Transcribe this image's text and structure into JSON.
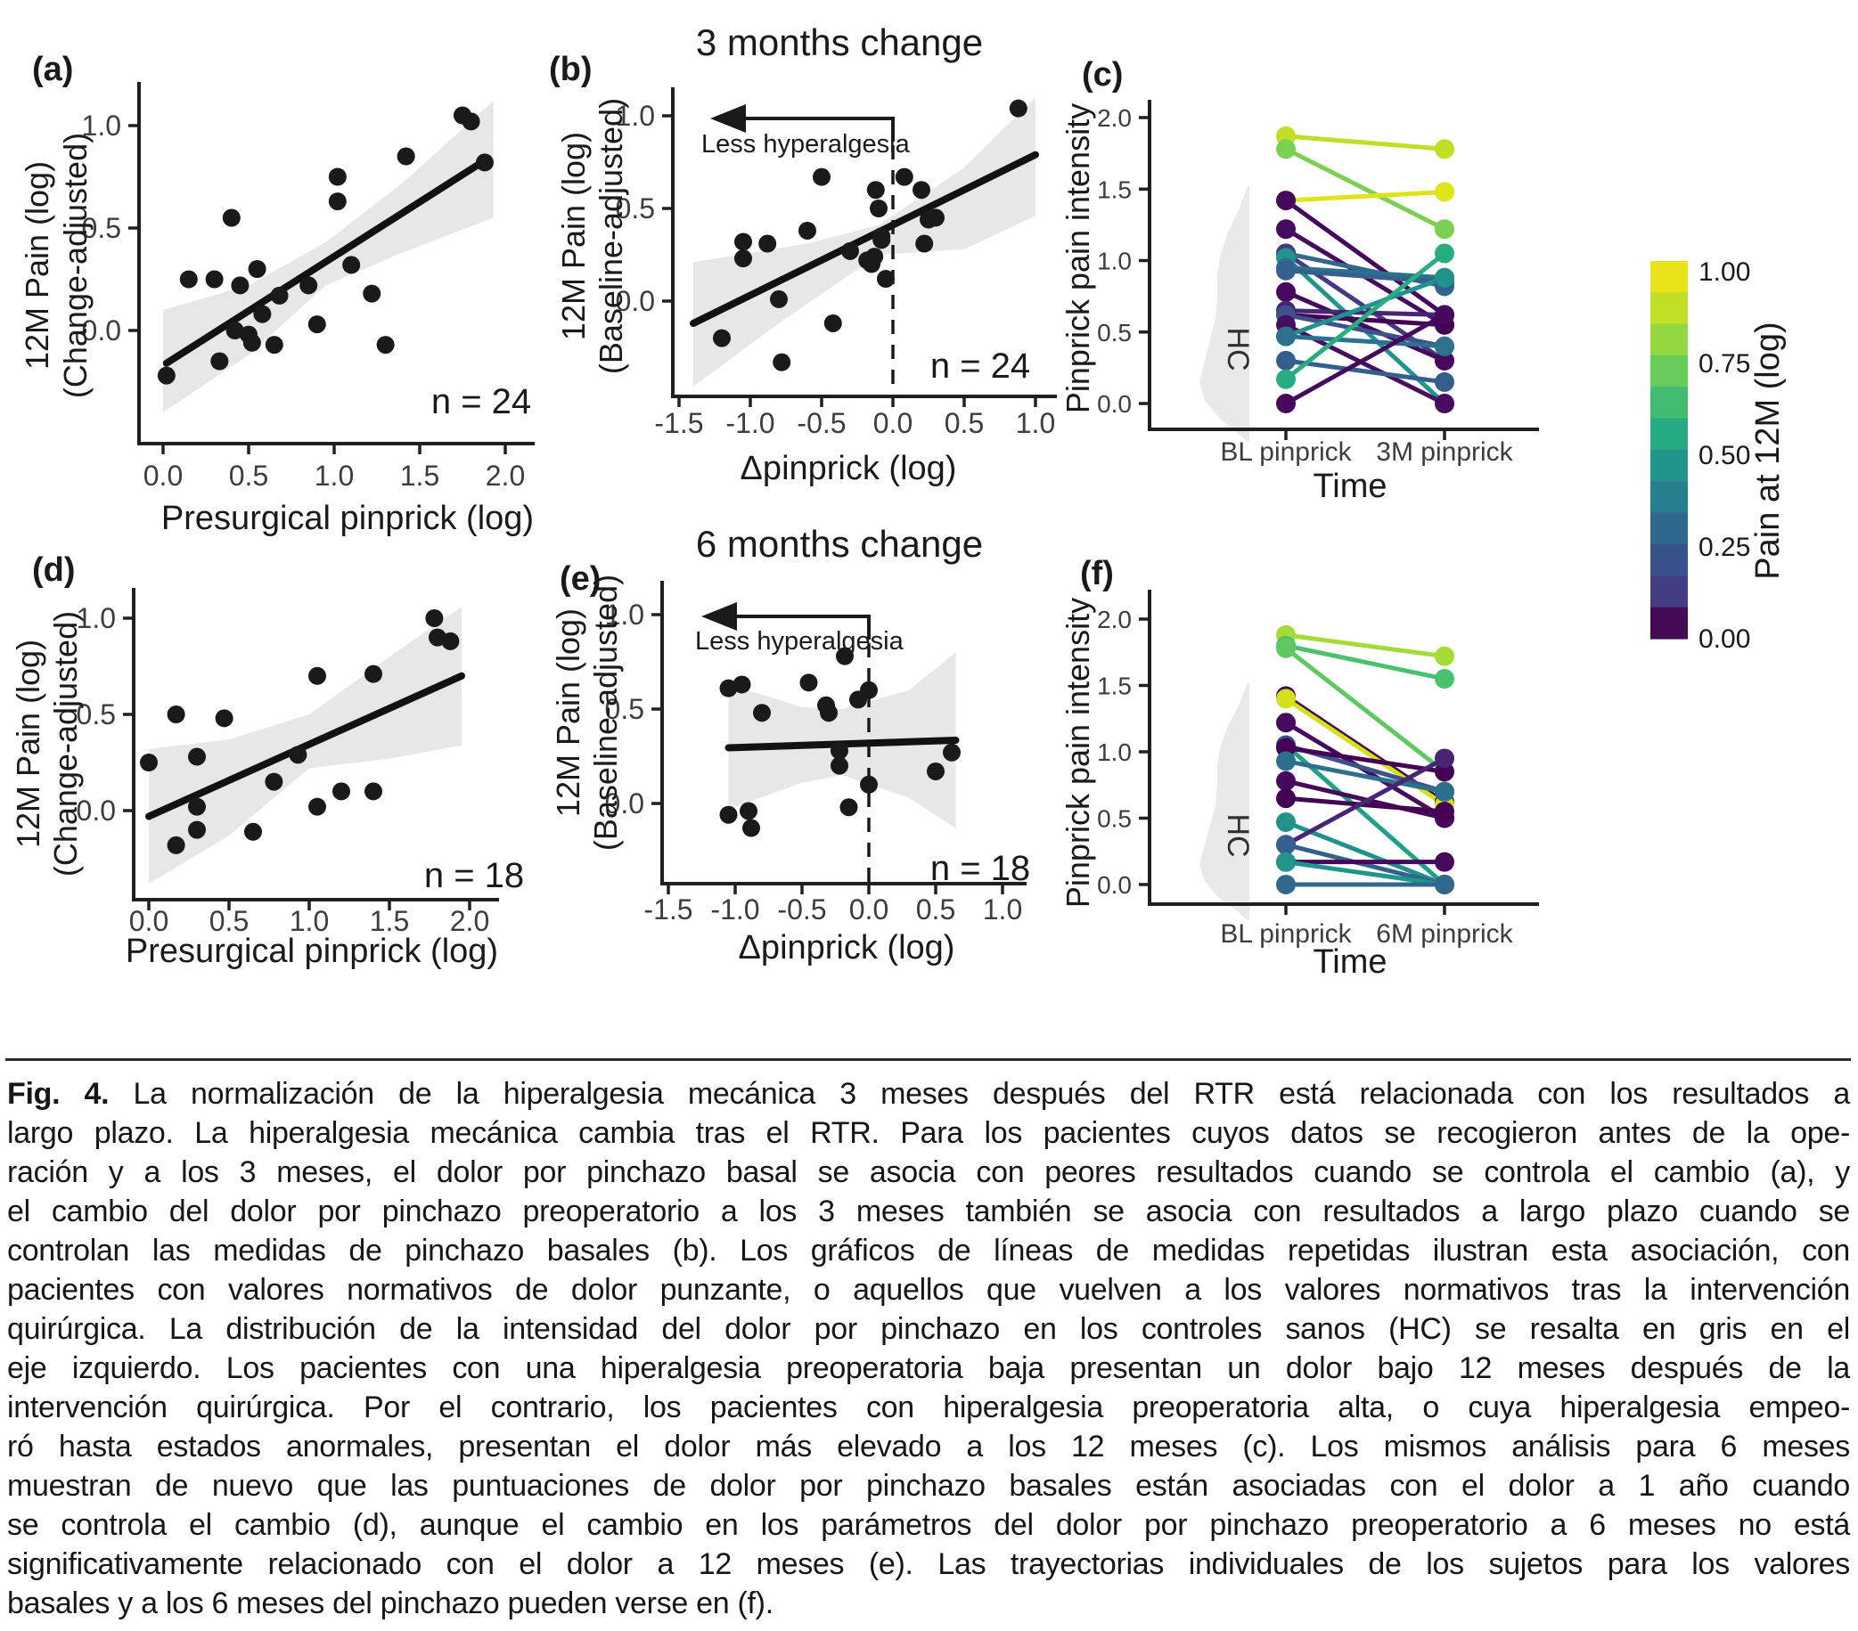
{
  "figure": {
    "caption": {
      "label": "Fig. 4.",
      "lines": [
        "La normalización de la hiperalgesia mecánica 3 meses después del RTR está relacionada con los resultados a",
        "largo plazo. La hiperalgesia mecánica cambia tras el RTR. Para los pacientes cuyos datos se recogieron antes de la ope-",
        "ración y a los 3 meses, el dolor por pinchazo basal se asocia con peores resultados cuando se controla el cambio (a), y",
        "el cambio del dolor por pinchazo preoperatorio a los 3 meses también se asocia con resultados a largo plazo cuando se",
        "controlan las medidas de pinchazo basales (b). Los gráficos de líneas de medidas repetidas ilustran esta asociación, con",
        "pacientes con valores normativos de dolor punzante, o aquellos que vuelven a los valores normativos tras la intervención",
        "quirúrgica. La distribución de la intensidad del dolor por pinchazo en los controles sanos (HC) se resalta en gris en el",
        "eje izquierdo. Los pacientes con una hiperalgesia preoperatoria baja presentan un dolor bajo 12 meses después de la",
        "intervención quirúrgica. Por el contrario, los pacientes con hiperalgesia preoperatoria alta, o cuya hiperalgesia empeo-",
        "ró hasta estados anormales, presentan el dolor más elevado a los 12 meses (c). Los mismos análisis para 6 meses",
        "muestran de nuevo que las puntuaciones de dolor por pinchazo basales están asociadas con el dolor a 1 año cuando",
        "se controla el cambio (d), aunque el cambio en los parámetros del dolor por pinchazo preoperatorio a 6 meses no está",
        "significativamente relacionado con el dolor a 12 meses (e). Las trayectorias individuales de los sujetos para los valores",
        "basales y a los 6 meses del pinchazo pueden verse en (f)."
      ]
    }
  },
  "colorbar": {
    "title": "Pain at 12M (log)",
    "tick_labels": [
      "1.00",
      "0.75",
      "0.50",
      "0.25",
      "0.00"
    ],
    "colors_top_to_bottom": [
      "#e8e419",
      "#c0df25",
      "#93d741",
      "#67cc5c",
      "#40bd72",
      "#27ab82",
      "#21958b",
      "#277e8e",
      "#2f678e",
      "#39518b",
      "#433d84",
      "#440c54"
    ]
  },
  "chart_data": [
    {
      "id": "a",
      "type": "scatter",
      "panel_label": "(a)",
      "title": "",
      "n_label": "n = 24",
      "xlabel": "Presurgical pinprick (log)",
      "ylabel_lines": [
        "12M Pain (log)",
        "(Change-adjusted)"
      ],
      "x_ticks": {
        "values": [
          0.0,
          0.5,
          1.0,
          1.5,
          2.0
        ],
        "labels": [
          "0.0",
          "0.5",
          "1.0",
          "1.5",
          "2.0"
        ]
      },
      "y_ticks": {
        "values": [
          0.0,
          0.5,
          1.0
        ],
        "labels": [
          "0.0",
          "0.5",
          "1.0"
        ]
      },
      "xlim": [
        -0.1,
        2.1
      ],
      "ylim": [
        -0.55,
        1.15
      ],
      "points": [
        [
          0.02,
          -0.22
        ],
        [
          0.33,
          -0.15
        ],
        [
          0.15,
          0.25
        ],
        [
          0.3,
          0.25
        ],
        [
          0.4,
          0.55
        ],
        [
          0.45,
          0.22
        ],
        [
          0.42,
          0.0
        ],
        [
          0.5,
          -0.02
        ],
        [
          0.52,
          -0.06
        ],
        [
          0.55,
          0.3
        ],
        [
          0.58,
          0.08
        ],
        [
          0.65,
          -0.07
        ],
        [
          0.68,
          0.17
        ],
        [
          0.85,
          0.22
        ],
        [
          0.9,
          0.03
        ],
        [
          1.02,
          0.75
        ],
        [
          1.02,
          0.63
        ],
        [
          1.1,
          0.32
        ],
        [
          1.22,
          0.18
        ],
        [
          1.3,
          -0.07
        ],
        [
          1.42,
          0.85
        ],
        [
          1.75,
          1.05
        ],
        [
          1.8,
          1.02
        ],
        [
          1.88,
          0.82
        ]
      ],
      "fit": [
        [
          0.02,
          -0.16
        ],
        [
          1.9,
          0.84
        ]
      ],
      "ci_upper": [
        [
          0.0,
          0.1
        ],
        [
          0.5,
          0.22
        ],
        [
          0.95,
          0.43
        ],
        [
          1.4,
          0.72
        ],
        [
          1.93,
          1.12
        ]
      ],
      "ci_lower": [
        [
          0.0,
          -0.4
        ],
        [
          0.5,
          -0.12
        ],
        [
          0.95,
          0.22
        ],
        [
          1.4,
          0.38
        ],
        [
          1.93,
          0.55
        ]
      ]
    },
    {
      "id": "b",
      "type": "scatter",
      "panel_label": "(b)",
      "title": "3 months change",
      "n_label": "n = 24",
      "xlabel": "Δpinprick  (log)",
      "ylabel_lines": [
        "12M Pain (log)",
        "(Baseline-adjusted)"
      ],
      "x_ticks": {
        "values": [
          -1.5,
          -1.0,
          -0.5,
          0.0,
          0.5,
          1.0
        ],
        "labels": [
          "-1.5",
          "-1.0",
          "-0.5",
          "0.0",
          "0.5",
          "1.0"
        ]
      },
      "y_ticks": {
        "values": [
          0.0,
          0.5,
          1.0
        ],
        "labels": [
          "0.0",
          "0.5",
          "1.0"
        ]
      },
      "xlim": [
        -1.6,
        1.1
      ],
      "ylim": [
        -0.55,
        1.15
      ],
      "arrow": {
        "label": "Less hyperalgesia",
        "y": 1.02,
        "from_x": 0.0,
        "tip_x": -1.28
      },
      "vline_x": 0.0,
      "points": [
        [
          -1.2,
          -0.2
        ],
        [
          -1.05,
          0.32
        ],
        [
          -1.05,
          0.23
        ],
        [
          -0.88,
          0.31
        ],
        [
          -0.8,
          0.01
        ],
        [
          -0.78,
          -0.33
        ],
        [
          -0.6,
          0.38
        ],
        [
          -0.5,
          0.67
        ],
        [
          -0.42,
          -0.12
        ],
        [
          -0.3,
          0.27
        ],
        [
          -0.18,
          0.22
        ],
        [
          -0.15,
          0.2
        ],
        [
          -0.13,
          0.24
        ],
        [
          -0.12,
          0.6
        ],
        [
          -0.1,
          0.5
        ],
        [
          -0.08,
          0.35
        ],
        [
          -0.08,
          0.33
        ],
        [
          -0.05,
          0.12
        ],
        [
          0.08,
          0.67
        ],
        [
          0.2,
          0.6
        ],
        [
          0.22,
          0.31
        ],
        [
          0.25,
          0.44
        ],
        [
          0.3,
          0.45
        ],
        [
          0.88,
          1.04
        ]
      ],
      "fit": [
        [
          -1.4,
          -0.12
        ],
        [
          1.0,
          0.79
        ]
      ],
      "ci_upper": [
        [
          -1.4,
          0.21
        ],
        [
          -0.6,
          0.31
        ],
        [
          -0.1,
          0.41
        ],
        [
          0.5,
          0.72
        ],
        [
          1.0,
          1.1
        ]
      ],
      "ci_lower": [
        [
          -1.4,
          -0.46
        ],
        [
          -0.8,
          -0.12
        ],
        [
          -0.1,
          0.25
        ],
        [
          0.5,
          0.28
        ],
        [
          1.0,
          0.46
        ]
      ]
    },
    {
      "id": "c",
      "type": "slope",
      "panel_label": "(c)",
      "categories": [
        "BL pinprick",
        "3M pinprick"
      ],
      "xlabel": "Time",
      "ylabel": "Pinprick pain intensity",
      "y_ticks": {
        "values": [
          0.0,
          0.5,
          1.0,
          1.5,
          2.0
        ],
        "labels": [
          "0.0",
          "0.5",
          "1.0",
          "1.5",
          "2.0"
        ]
      },
      "ylim": [
        -0.3,
        2.1
      ],
      "hc_label": "HC",
      "hc_density": [
        [
          1.52,
          2
        ],
        [
          1.35,
          12
        ],
        [
          1.2,
          24
        ],
        [
          1.05,
          32
        ],
        [
          0.9,
          36
        ],
        [
          0.75,
          36
        ],
        [
          0.6,
          38
        ],
        [
          0.45,
          44
        ],
        [
          0.3,
          50
        ],
        [
          0.15,
          56
        ],
        [
          0.02,
          50
        ],
        [
          -0.1,
          34
        ],
        [
          -0.2,
          14
        ],
        [
          -0.27,
          2
        ]
      ],
      "pairs": [
        {
          "from": 1.87,
          "to": 1.78,
          "color": "#bddf26"
        },
        {
          "from": 1.78,
          "to": 1.22,
          "color": "#7ad151"
        },
        {
          "from": 1.42,
          "to": 1.48,
          "color": "#dfe318"
        },
        {
          "from": 1.42,
          "to": 0.62,
          "color": "#46085c"
        },
        {
          "from": 1.22,
          "to": 0.55,
          "color": "#460b5e"
        },
        {
          "from": 1.05,
          "to": 0.82,
          "color": "#31688e"
        },
        {
          "from": 1.05,
          "to": 0.3,
          "color": "#443983"
        },
        {
          "from": 1.02,
          "to": 0.0,
          "color": "#1f968b"
        },
        {
          "from": 0.95,
          "to": 0.88,
          "color": "#2d708e"
        },
        {
          "from": 0.93,
          "to": 0.85,
          "color": "#355f8d"
        },
        {
          "from": 0.78,
          "to": 0.3,
          "color": "#46085c"
        },
        {
          "from": 0.65,
          "to": 0.62,
          "color": "#482475"
        },
        {
          "from": 0.62,
          "to": 0.55,
          "color": "#440154"
        },
        {
          "from": 0.62,
          "to": 0.4,
          "color": "#3b528b"
        },
        {
          "from": 0.55,
          "to": 0.0,
          "color": "#470d60"
        },
        {
          "from": 0.47,
          "to": 0.88,
          "color": "#21918c"
        },
        {
          "from": 0.47,
          "to": 0.4,
          "color": "#2c728e"
        },
        {
          "from": 0.3,
          "to": 0.15,
          "color": "#345f8d"
        },
        {
          "from": 0.17,
          "to": 1.05,
          "color": "#27ad81"
        },
        {
          "from": 0.0,
          "to": 0.62,
          "color": "#46085c"
        }
      ]
    },
    {
      "id": "d",
      "type": "scatter",
      "panel_label": "(d)",
      "title": "",
      "n_label": "n = 18",
      "xlabel": "Presurgical pinprick (log)",
      "ylabel_lines": [
        "12M Pain (log)",
        "(Change-adjusted)"
      ],
      "x_ticks": {
        "values": [
          0.0,
          0.5,
          1.0,
          1.5,
          2.0
        ],
        "labels": [
          "0.0",
          "0.5",
          "1.0",
          "1.5",
          "2.0"
        ]
      },
      "y_ticks": {
        "values": [
          0.0,
          0.5,
          1.0
        ],
        "labels": [
          "0.0",
          "0.5",
          "1.0"
        ]
      },
      "xlim": [
        -0.1,
        2.1
      ],
      "ylim": [
        -0.5,
        1.15
      ],
      "points": [
        [
          0.0,
          0.25
        ],
        [
          0.17,
          0.5
        ],
        [
          0.17,
          -0.18
        ],
        [
          0.3,
          0.28
        ],
        [
          0.3,
          0.02
        ],
        [
          0.3,
          -0.1
        ],
        [
          0.47,
          0.48
        ],
        [
          0.65,
          -0.11
        ],
        [
          0.78,
          0.15
        ],
        [
          0.93,
          0.29
        ],
        [
          1.05,
          0.7
        ],
        [
          1.05,
          0.02
        ],
        [
          1.2,
          0.1
        ],
        [
          1.4,
          0.71
        ],
        [
          1.4,
          0.1
        ],
        [
          1.78,
          1.0
        ],
        [
          1.8,
          0.9
        ],
        [
          1.88,
          0.88
        ]
      ],
      "fit": [
        [
          0.0,
          -0.03
        ],
        [
          1.95,
          0.7
        ]
      ],
      "ci_upper": [
        [
          0.0,
          0.32
        ],
        [
          0.5,
          0.37
        ],
        [
          1.0,
          0.5
        ],
        [
          1.5,
          0.8
        ],
        [
          1.95,
          1.06
        ]
      ],
      "ci_lower": [
        [
          0.0,
          -0.38
        ],
        [
          0.5,
          -0.13
        ],
        [
          1.0,
          0.22
        ],
        [
          1.5,
          0.27
        ],
        [
          1.95,
          0.34
        ]
      ]
    },
    {
      "id": "e",
      "type": "scatter",
      "panel_label": "(e)",
      "title": "6 months change",
      "n_label": "n = 18",
      "xlabel": "Δpinprick  (log)",
      "ylabel_lines": [
        "12M Pain (log)",
        "(Baseline-adjusted)"
      ],
      "x_ticks": {
        "values": [
          -1.5,
          -1.0,
          -0.5,
          0.0,
          0.5,
          1.0
        ],
        "labels": [
          "-1.5",
          "-1.0",
          "-0.5",
          "0.0",
          "0.5",
          "1.0"
        ]
      },
      "y_ticks": {
        "values": [
          0.0,
          0.5,
          1.0
        ],
        "labels": [
          "0.0",
          "0.5",
          "1.0"
        ]
      },
      "xlim": [
        -1.6,
        1.1
      ],
      "ylim": [
        -0.45,
        1.12
      ],
      "arrow": {
        "label": "Less hyperalgesia",
        "y": 1.0,
        "from_x": 0.0,
        "tip_x": -1.25
      },
      "vline_x": 0.0,
      "points": [
        [
          -1.05,
          0.61
        ],
        [
          -0.95,
          0.63
        ],
        [
          -1.05,
          -0.06
        ],
        [
          -0.9,
          -0.04
        ],
        [
          -0.88,
          -0.13
        ],
        [
          -0.8,
          0.48
        ],
        [
          -0.45,
          0.64
        ],
        [
          -0.32,
          0.52
        ],
        [
          -0.3,
          0.48
        ],
        [
          -0.22,
          0.28
        ],
        [
          -0.22,
          0.2
        ],
        [
          -0.18,
          0.78
        ],
        [
          -0.15,
          -0.02
        ],
        [
          -0.08,
          0.55
        ],
        [
          0.0,
          0.6
        ],
        [
          0.0,
          0.1
        ],
        [
          0.5,
          0.17
        ],
        [
          0.62,
          0.27
        ]
      ],
      "fit": [
        [
          -1.05,
          0.295
        ],
        [
          0.65,
          0.335
        ]
      ],
      "ci_upper": [
        [
          -1.05,
          0.63
        ],
        [
          -0.5,
          0.51
        ],
        [
          -0.2,
          0.5
        ],
        [
          0.3,
          0.6
        ],
        [
          0.65,
          0.8
        ]
      ],
      "ci_lower": [
        [
          -1.05,
          -0.03
        ],
        [
          -0.5,
          0.11
        ],
        [
          -0.2,
          0.15
        ],
        [
          0.3,
          0.03
        ],
        [
          0.65,
          -0.13
        ]
      ]
    },
    {
      "id": "f",
      "type": "slope",
      "panel_label": "(f)",
      "categories": [
        "BL pinprick",
        "6M pinprick"
      ],
      "xlabel": "Time",
      "ylabel": "Pinprick pain intensity",
      "y_ticks": {
        "values": [
          0.0,
          0.5,
          1.0,
          1.5,
          2.0
        ],
        "labels": [
          "0.0",
          "0.5",
          "1.0",
          "1.5",
          "2.0"
        ]
      },
      "ylim": [
        -0.3,
        2.1
      ],
      "hc_label": "HC",
      "hc_density": [
        [
          1.52,
          2
        ],
        [
          1.35,
          12
        ],
        [
          1.2,
          24
        ],
        [
          1.05,
          32
        ],
        [
          0.9,
          36
        ],
        [
          0.75,
          36
        ],
        [
          0.6,
          38
        ],
        [
          0.45,
          44
        ],
        [
          0.3,
          50
        ],
        [
          0.15,
          56
        ],
        [
          0.02,
          50
        ],
        [
          -0.1,
          34
        ],
        [
          -0.2,
          14
        ],
        [
          -0.27,
          2
        ]
      ],
      "pairs": [
        {
          "from": 1.88,
          "to": 1.72,
          "color": "#a5db36"
        },
        {
          "from": 1.8,
          "to": 1.55,
          "color": "#4ac16d"
        },
        {
          "from": 1.78,
          "to": 0.85,
          "color": "#5ec962"
        },
        {
          "from": 1.42,
          "to": 0.62,
          "color": "#46085c"
        },
        {
          "from": 1.4,
          "to": 0.6,
          "color": "#d2e21b"
        },
        {
          "from": 1.22,
          "to": 0.5,
          "color": "#460b5e"
        },
        {
          "from": 1.05,
          "to": 0.0,
          "color": "#1fa187"
        },
        {
          "from": 1.05,
          "to": 0.7,
          "color": "#3b528b"
        },
        {
          "from": 1.03,
          "to": 0.85,
          "color": "#440154"
        },
        {
          "from": 0.93,
          "to": 0.7,
          "color": "#2d708e"
        },
        {
          "from": 0.78,
          "to": 0.5,
          "color": "#46085c"
        },
        {
          "from": 0.65,
          "to": 0.55,
          "color": "#440154"
        },
        {
          "from": 0.47,
          "to": 0.0,
          "color": "#21918c"
        },
        {
          "from": 0.3,
          "to": 0.95,
          "color": "#482475"
        },
        {
          "from": 0.3,
          "to": 0.0,
          "color": "#355f8d"
        },
        {
          "from": 0.17,
          "to": 0.17,
          "color": "#46085c"
        },
        {
          "from": 0.17,
          "to": 0.0,
          "color": "#1f968b"
        },
        {
          "from": 0.0,
          "to": 0.0,
          "color": "#31688e"
        }
      ]
    }
  ]
}
